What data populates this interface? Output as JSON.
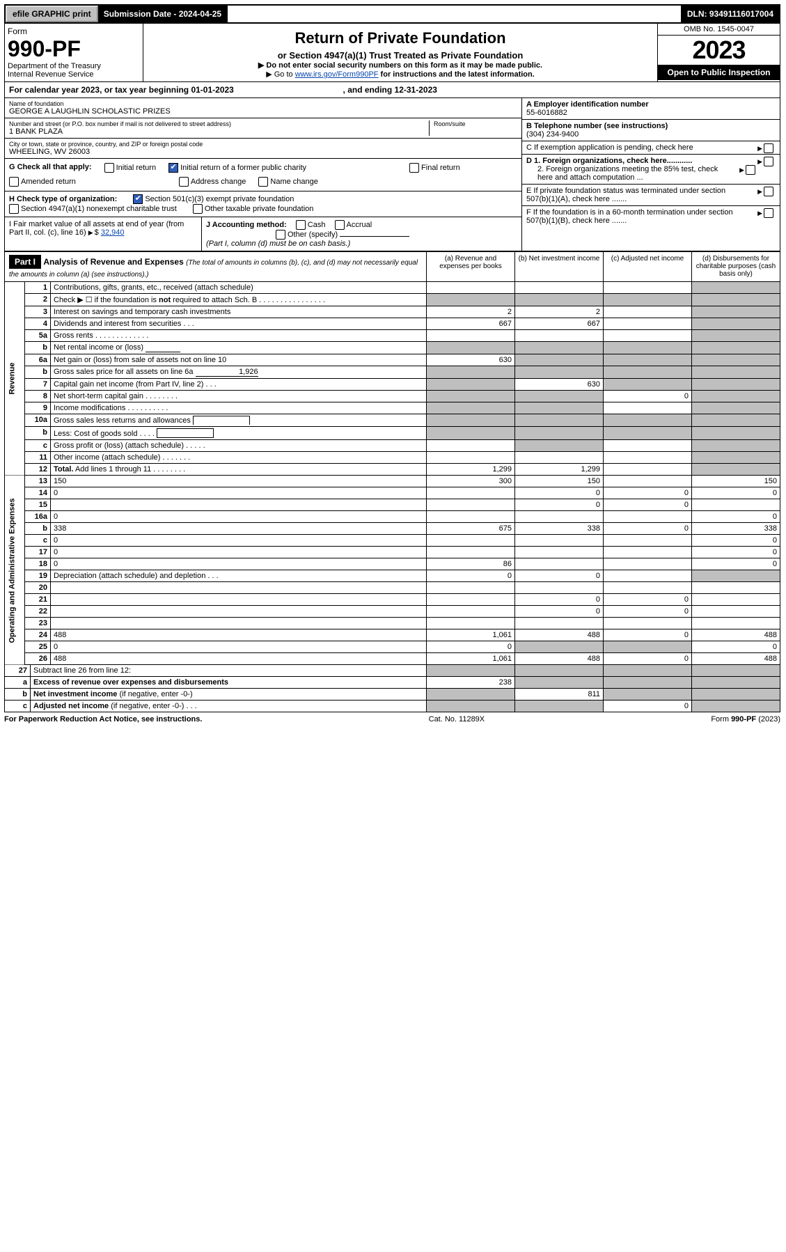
{
  "top": {
    "efile": "efile GRAPHIC print",
    "sub_label": "Submission Date - 2024-04-25",
    "dln": "DLN: 93491116017004"
  },
  "header": {
    "form_word": "Form",
    "form_num": "990-PF",
    "dept": "Department of the Treasury",
    "irs": "Internal Revenue Service",
    "title": "Return of Private Foundation",
    "subtitle": "or Section 4947(a)(1) Trust Treated as Private Foundation",
    "instr1": "▶ Do not enter social security numbers on this form as it may be made public.",
    "instr2_pre": "▶ Go to ",
    "instr2_link": "www.irs.gov/Form990PF",
    "instr2_post": " for instructions and the latest information.",
    "omb": "OMB No. 1545-0047",
    "year": "2023",
    "open": "Open to Public Inspection"
  },
  "calyear": {
    "text_pre": "For calendar year 2023, or tax year beginning ",
    "begin": "01-01-2023",
    "mid": " , and ending ",
    "end": "12-31-2023"
  },
  "entity": {
    "name_label": "Name of foundation",
    "name": "GEORGE A LAUGHLIN SCHOLASTIC PRIZES",
    "addr_label": "Number and street (or P.O. box number if mail is not delivered to street address)",
    "addr": "1 BANK PLAZA",
    "room_label": "Room/suite",
    "city_label": "City or town, state or province, country, and ZIP or foreign postal code",
    "city": "WHEELING, WV  26003",
    "a_label": "A Employer identification number",
    "a_val": "55-6016882",
    "b_label": "B Telephone number (see instructions)",
    "b_val": "(304) 234-9400",
    "c_label": "C If exemption application is pending, check here",
    "d1": "D 1. Foreign organizations, check here............",
    "d2": "2. Foreign organizations meeting the 85% test, check here and attach computation ...",
    "e": "E  If private foundation status was terminated under section 507(b)(1)(A), check here .......",
    "f": "F  If the foundation is in a 60-month termination under section 507(b)(1)(B), check here ......."
  },
  "g": {
    "label": "G Check all that apply:",
    "opts": [
      "Initial return",
      "Initial return of a former public charity",
      "Final return",
      "Amended return",
      "Address change",
      "Name change"
    ]
  },
  "h": {
    "label": "H Check type of organization:",
    "o1": "Section 501(c)(3) exempt private foundation",
    "o2": "Section 4947(a)(1) nonexempt charitable trust",
    "o3": "Other taxable private foundation"
  },
  "i": {
    "label": "I Fair market value of all assets at end of year (from Part II, col. (c), line 16)",
    "val": "32,940"
  },
  "j": {
    "label": "J Accounting method:",
    "cash": "Cash",
    "accrual": "Accrual",
    "other": "Other (specify)",
    "note": "(Part I, column (d) must be on cash basis.)"
  },
  "part1": {
    "hdr": "Part I",
    "title": "Analysis of Revenue and Expenses",
    "note": "(The total of amounts in columns (b), (c), and (d) may not necessarily equal the amounts in column (a) (see instructions).)",
    "cols": {
      "a": "(a)   Revenue and expenses per books",
      "b": "(b)  Net investment income",
      "c": "(c)  Adjusted net income",
      "d": "(d)  Disbursements for charitable purposes (cash basis only)"
    }
  },
  "side_rev": "Revenue",
  "side_exp": "Operating and Administrative Expenses",
  "rows": [
    {
      "n": "1",
      "d": "Contributions, gifts, grants, etc., received (attach schedule)",
      "a": "",
      "b": "",
      "c": "",
      "shadeD": true
    },
    {
      "n": "2",
      "d": "Check ▶ ☐ if the foundation is <b>not</b> required to attach Sch. B   .  .  .  .  .  .  .  .  .  .  .  .  .  .  .  .",
      "shadeA": true,
      "shadeB": true,
      "shadeC": true,
      "shadeD": true
    },
    {
      "n": "3",
      "d": "Interest on savings and temporary cash investments",
      "a": "2",
      "b": "2",
      "c": "",
      "shadeD": true
    },
    {
      "n": "4",
      "d": "Dividends and interest from securities   .  .  .",
      "a": "667",
      "b": "667",
      "c": "",
      "shadeD": true
    },
    {
      "n": "5a",
      "d": "Gross rents   .  .  .  .  .  .  .  .  .  .  .  .  .",
      "a": "",
      "b": "",
      "c": "",
      "shadeD": true
    },
    {
      "n": "b",
      "d": "Net rental income or (loss) <span class='underline'>&nbsp;</span>",
      "shadeA": true,
      "shadeB": true,
      "shadeC": true,
      "shadeD": true
    },
    {
      "n": "6a",
      "d": "Net gain or (loss) from sale of assets not on line 10",
      "a": "630",
      "shadeB": true,
      "shadeC": true,
      "shadeD": true
    },
    {
      "n": "b",
      "d": "Gross sales price for all assets on line 6a <span class='underline' style='min-width:90px;text-align:right'>1,926</span>",
      "shadeA": true,
      "shadeB": true,
      "shadeC": true,
      "shadeD": true
    },
    {
      "n": "7",
      "d": "Capital gain net income (from Part IV, line 2)  .  .  .",
      "shadeA": true,
      "b": "630",
      "shadeC": true,
      "shadeD": true
    },
    {
      "n": "8",
      "d": "Net short-term capital gain  .  .  .  .  .  .  .  .",
      "shadeA": true,
      "shadeB": true,
      "c": "0",
      "shadeD": true
    },
    {
      "n": "9",
      "d": "Income modifications .  .  .  .  .  .  .  .  .  .",
      "shadeA": true,
      "shadeB": true,
      "c": "",
      "shadeD": true
    },
    {
      "n": "10a",
      "d": "Gross sales less returns and allowances <span style='display:inline-block;border:1px solid #000;border-bottom:none;width:80px;height:12px;vertical-align:bottom'></span>",
      "shadeA": true,
      "shadeB": true,
      "shadeC": true,
      "shadeD": true
    },
    {
      "n": "b",
      "d": "Less: Cost of goods sold  .  .  .  . <span style='display:inline-block;border:1px solid #000;width:80px;height:12px;vertical-align:bottom'></span>",
      "shadeA": true,
      "shadeB": true,
      "shadeC": true,
      "shadeD": true
    },
    {
      "n": "c",
      "d": "Gross profit or (loss) (attach schedule)  .  .  .  .  .",
      "a": "",
      "shadeB": true,
      "c": "",
      "shadeD": true
    },
    {
      "n": "11",
      "d": "Other income (attach schedule)  .  .  .  .  .  .  .",
      "a": "",
      "b": "",
      "c": "",
      "shadeD": true
    },
    {
      "n": "12",
      "d": "<b>Total.</b> Add lines 1 through 11  .  .  .  .  .  .  .  .",
      "a": "1,299",
      "b": "1,299",
      "c": "",
      "shadeD": true
    }
  ],
  "exp_rows": [
    {
      "n": "13",
      "d": "150",
      "a": "300",
      "b": "150",
      "c": ""
    },
    {
      "n": "14",
      "d": "0",
      "a": "",
      "b": "0",
      "c": "0"
    },
    {
      "n": "15",
      "d": "",
      "a": "",
      "b": "0",
      "c": "0"
    },
    {
      "n": "16a",
      "d": "0",
      "a": "",
      "b": "",
      "c": ""
    },
    {
      "n": "b",
      "d": "338",
      "a": "675",
      "b": "338",
      "c": "0"
    },
    {
      "n": "c",
      "d": "0",
      "a": "",
      "b": "",
      "c": ""
    },
    {
      "n": "17",
      "d": "0",
      "a": "",
      "b": "",
      "c": ""
    },
    {
      "n": "18",
      "d": "0",
      "a": "86",
      "b": "",
      "c": ""
    },
    {
      "n": "19",
      "d": "Depreciation (attach schedule) and depletion  .  .  .",
      "a": "0",
      "b": "0",
      "c": "",
      "shadeD": true
    },
    {
      "n": "20",
      "d": "",
      "a": "",
      "b": "",
      "c": ""
    },
    {
      "n": "21",
      "d": "",
      "a": "",
      "b": "0",
      "c": "0"
    },
    {
      "n": "22",
      "d": "",
      "a": "",
      "b": "0",
      "c": "0"
    },
    {
      "n": "23",
      "d": "",
      "a": "",
      "b": "",
      "c": ""
    },
    {
      "n": "24",
      "d": "488",
      "a": "1,061",
      "b": "488",
      "c": "0"
    },
    {
      "n": "25",
      "d": "0",
      "a": "0",
      "shadeB": true,
      "shadeC": true
    },
    {
      "n": "26",
      "d": "488",
      "a": "1,061",
      "b": "488",
      "c": "0"
    }
  ],
  "final_rows": [
    {
      "n": "27",
      "d": "Subtract line 26 from line 12:",
      "shadeA": true,
      "shadeB": true,
      "shadeC": true,
      "shadeD": true
    },
    {
      "n": "a",
      "d": "<b>Excess of revenue over expenses and disbursements</b>",
      "a": "238",
      "shadeB": true,
      "shadeC": true,
      "shadeD": true
    },
    {
      "n": "b",
      "d": "<b>Net investment income</b> (if negative, enter -0-)",
      "shadeA": true,
      "b": "811",
      "shadeC": true,
      "shadeD": true
    },
    {
      "n": "c",
      "d": "<b>Adjusted net income</b> (if negative, enter -0-)  .  .  .",
      "shadeA": true,
      "shadeB": true,
      "c": "0",
      "shadeD": true
    }
  ],
  "footer": {
    "left": "For Paperwork Reduction Act Notice, see instructions.",
    "mid": "Cat. No. 11289X",
    "right": "Form 990-PF (2023)"
  }
}
